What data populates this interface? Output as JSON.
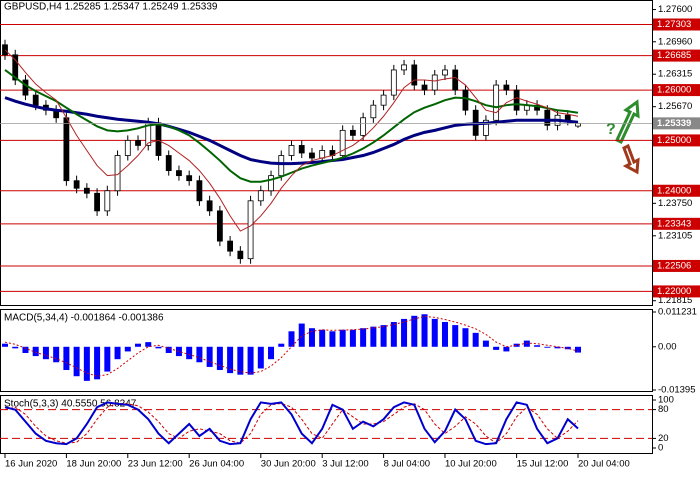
{
  "chart_data": [
    {
      "type": "candlestick",
      "title": "GBPUSD,H4  1.25285 1.25347 1.25249 1.25339",
      "categories": [
        "16 Jun 2020",
        null,
        null,
        null,
        null,
        null,
        "18 Jun 20:00",
        null,
        null,
        null,
        null,
        null,
        "23 Jun 12:00",
        null,
        null,
        null,
        null,
        null,
        "26 Jun 04:00",
        null,
        null,
        null,
        null,
        null,
        null,
        "30 Jun 20:00",
        null,
        null,
        null,
        null,
        null,
        "3 Jul 12:00",
        null,
        null,
        null,
        null,
        null,
        "8 Jul 04:00",
        null,
        null,
        null,
        null,
        null,
        "10 Jul 20:00",
        null,
        null,
        null,
        null,
        null,
        null,
        "15 Jul 12:00",
        null,
        null,
        null,
        null,
        null,
        "20 Jul 04:00"
      ],
      "open": [
        1.269,
        1.267,
        1.262,
        1.259,
        1.257,
        1.256,
        1.2545,
        1.242,
        1.2405,
        1.2395,
        1.236,
        1.24,
        1.247,
        1.25,
        1.249,
        1.2535,
        1.247,
        1.244,
        1.243,
        1.242,
        1.238,
        1.236,
        1.23,
        1.228,
        1.2265,
        1.238,
        1.24,
        1.243,
        1.247,
        1.249,
        1.2475,
        1.2465,
        1.248,
        1.247,
        1.252,
        1.251,
        1.2545,
        1.257,
        1.259,
        1.264,
        1.265,
        1.261,
        1.26,
        1.263,
        1.264,
        1.26,
        1.256,
        1.251,
        1.254,
        1.261,
        1.26,
        1.256,
        1.257,
        1.256,
        1.253,
        1.255,
        1.25285
      ],
      "high": [
        1.27,
        1.268,
        1.263,
        1.26,
        1.258,
        1.257,
        1.2555,
        1.243,
        1.2415,
        1.2405,
        1.241,
        1.248,
        1.251,
        1.251,
        1.2545,
        1.2545,
        1.248,
        1.245,
        1.244,
        1.243,
        1.239,
        1.237,
        1.231,
        1.229,
        1.239,
        1.241,
        1.244,
        1.248,
        1.25,
        1.25,
        1.2485,
        1.249,
        1.249,
        1.253,
        1.253,
        1.2555,
        1.258,
        1.26,
        1.265,
        1.266,
        1.266,
        1.262,
        1.264,
        1.265,
        1.265,
        1.261,
        1.257,
        1.255,
        1.262,
        1.262,
        1.261,
        1.258,
        1.258,
        1.257,
        1.256,
        1.256,
        1.25347
      ],
      "low": [
        1.266,
        1.261,
        1.258,
        1.256,
        1.255,
        1.2535,
        1.241,
        1.2395,
        1.2385,
        1.235,
        1.235,
        1.239,
        1.246,
        1.248,
        1.248,
        1.246,
        1.243,
        1.242,
        1.241,
        1.237,
        1.235,
        1.229,
        1.227,
        1.2255,
        1.2255,
        1.237,
        1.239,
        1.242,
        1.246,
        1.2465,
        1.2455,
        1.2455,
        1.246,
        1.246,
        1.25,
        1.25,
        1.2535,
        1.256,
        1.258,
        1.263,
        1.26,
        1.259,
        1.259,
        1.262,
        1.259,
        1.255,
        1.25,
        1.25,
        1.253,
        1.259,
        1.255,
        1.255,
        1.255,
        1.252,
        1.252,
        1.253,
        1.25249
      ],
      "close": [
        1.267,
        1.262,
        1.259,
        1.257,
        1.256,
        1.2545,
        1.242,
        1.2405,
        1.2395,
        1.236,
        1.24,
        1.247,
        1.25,
        1.249,
        1.2535,
        1.247,
        1.244,
        1.243,
        1.242,
        1.238,
        1.236,
        1.23,
        1.228,
        1.2265,
        1.238,
        1.24,
        1.243,
        1.247,
        1.249,
        1.2475,
        1.2465,
        1.248,
        1.247,
        1.252,
        1.251,
        1.2545,
        1.257,
        1.259,
        1.264,
        1.265,
        1.261,
        1.26,
        1.263,
        1.264,
        1.26,
        1.256,
        1.251,
        1.254,
        1.261,
        1.26,
        1.256,
        1.257,
        1.256,
        1.253,
        1.255,
        1.254,
        1.25339
      ],
      "series": [
        {
          "color": "#000080",
          "values": [
            1.2585,
            1.2578,
            1.2572,
            1.2567,
            1.2563,
            1.256,
            1.2558,
            1.2555,
            1.2552,
            1.2548,
            1.2545,
            1.2542,
            1.254,
            1.2538,
            1.2536,
            1.2533,
            1.2528,
            1.2522,
            1.2516,
            1.2508,
            1.25,
            1.249,
            1.248,
            1.247,
            1.2462,
            1.2458,
            1.2455,
            1.2454,
            1.2454,
            1.2455,
            1.2456,
            1.2458,
            1.246,
            1.2462,
            1.2466,
            1.247,
            1.2476,
            1.2484,
            1.2492,
            1.2502,
            1.251,
            1.2516,
            1.252,
            1.2525,
            1.253,
            1.2532,
            1.2533,
            1.2534,
            1.2536,
            1.2538,
            1.254,
            1.254,
            1.254,
            1.254,
            1.254,
            1.2538,
            1.2536
          ]
        },
        {
          "color": "#006400",
          "values": [
            1.264,
            1.2625,
            1.261,
            1.2598,
            1.2588,
            1.2578,
            1.2565,
            1.2552,
            1.254,
            1.2528,
            1.252,
            1.2518,
            1.252,
            1.2524,
            1.253,
            1.2532,
            1.2528,
            1.252,
            1.251,
            1.2495,
            1.2478,
            1.246,
            1.244,
            1.2425,
            1.2418,
            1.2418,
            1.2422,
            1.2428,
            1.2436,
            1.2444,
            1.245,
            1.2455,
            1.246,
            1.2466,
            1.2474,
            1.2484,
            1.2496,
            1.251,
            1.2526,
            1.2542,
            1.2556,
            1.2565,
            1.2572,
            1.258,
            1.2585,
            1.2584,
            1.2578,
            1.257,
            1.2566,
            1.257,
            1.2572,
            1.257,
            1.2568,
            1.2564,
            1.256,
            1.2558,
            1.2555
          ]
        },
        {
          "color": "#b22222",
          "values": [
            1.268,
            1.266,
            1.2635,
            1.2612,
            1.2595,
            1.258,
            1.2545,
            1.251,
            1.248,
            1.245,
            1.243,
            1.2432,
            1.245,
            1.247,
            1.2495,
            1.25,
            1.249,
            1.2475,
            1.246,
            1.244,
            1.2415,
            1.2385,
            1.235,
            1.232,
            1.233,
            1.235,
            1.2375,
            1.2405,
            1.243,
            1.245,
            1.246,
            1.2465,
            1.247,
            1.248,
            1.249,
            1.2505,
            1.2525,
            1.2548,
            1.2575,
            1.2605,
            1.262,
            1.262,
            1.2618,
            1.2622,
            1.2625,
            1.261,
            1.2585,
            1.256,
            1.2555,
            1.2575,
            1.2585,
            1.2578,
            1.2572,
            1.2565,
            1.2555,
            1.2552,
            1.2548
          ]
        }
      ],
      "levels": [
        1.27303,
        1.26685,
        {
          "value": 1.26,
          "label": "1.26000"
        },
        {
          "value": 1.25,
          "label": "1.25000"
        },
        {
          "value": 1.24,
          "label": "1.24000"
        },
        1.23343,
        1.22506,
        {
          "value": 1.22,
          "label": "1.22000"
        }
      ],
      "level_color": "#cc0000",
      "ylim": [
        1.2175,
        1.2775
      ],
      "yticks": [
        {
          "value": 1.276,
          "label": "1.27600"
        },
        {
          "value": 1.2696,
          "label": "1.26960"
        },
        1.26315,
        {
          "value": 1.2567,
          "label": "1.25670"
        },
        {
          "value": 1.2375,
          "label": "1.23750"
        },
        1.23105,
        1.21815
      ]
    },
    {
      "type": "macd",
      "title": "MACD(5,34,4) -0.001864 -0.001386",
      "color": "#0000ff",
      "values": [
        0.001,
        -0.0005,
        -0.002,
        -0.003,
        -0.004,
        -0.005,
        -0.0075,
        -0.0095,
        -0.011,
        -0.0105,
        -0.008,
        -0.004,
        -0.0015,
        0.001,
        0.0015,
        -0.0005,
        -0.002,
        -0.003,
        -0.004,
        -0.005,
        -0.0065,
        -0.0075,
        -0.0085,
        -0.009,
        -0.009,
        -0.007,
        -0.004,
        0.001,
        0.005,
        0.0075,
        0.006,
        0.0055,
        0.005,
        0.0055,
        0.0055,
        0.006,
        0.0065,
        0.007,
        0.008,
        0.009,
        0.01,
        0.0105,
        0.009,
        0.008,
        0.007,
        0.006,
        0.0045,
        0.002,
        -0.001,
        -0.0015,
        0.001,
        0.002,
        0.0005,
        -0.0003,
        -0.0005,
        -0.0008,
        -0.001864
      ],
      "signal": {
        "color": "#cc0000",
        "values": [
          0.0015,
          0.0008,
          -0.0005,
          -0.0018,
          -0.0028,
          -0.0038,
          -0.0052,
          -0.0068,
          -0.0085,
          -0.0095,
          -0.009,
          -0.007,
          -0.0045,
          -0.002,
          0.0,
          0.0005,
          -0.0005,
          -0.0015,
          -0.0025,
          -0.0035,
          -0.0048,
          -0.006,
          -0.0072,
          -0.008,
          -0.0085,
          -0.008,
          -0.0062,
          -0.0035,
          0.0,
          0.0035,
          0.005,
          0.0055,
          0.0053,
          0.0054,
          0.0055,
          0.0057,
          0.0061,
          0.0065,
          0.0072,
          0.008,
          0.009,
          0.0098,
          0.0095,
          0.0088,
          0.008,
          0.007,
          0.0058,
          0.004,
          0.0015,
          0.0,
          0.0005,
          0.0012,
          0.001,
          0.0005,
          0.0,
          -0.0005,
          -0.001386
        ]
      },
      "ylim": [
        -0.01395,
        0.011231
      ],
      "yticks": [
        0.011231,
        {
          "value": 0,
          "label": "0.00"
        },
        -0.01395
      ]
    },
    {
      "type": "stoch",
      "title": "Stoch(5,3,3) 40.5550 56.8247",
      "color": "#0000cd",
      "values": [
        85,
        80,
        55,
        30,
        15,
        10,
        8,
        20,
        50,
        85,
        95,
        92,
        90,
        80,
        60,
        30,
        10,
        30,
        50,
        25,
        40,
        15,
        8,
        10,
        60,
        95,
        92,
        95,
        70,
        30,
        10,
        40,
        90,
        80,
        40,
        55,
        45,
        60,
        85,
        95,
        90,
        40,
        12,
        35,
        80,
        60,
        15,
        8,
        10,
        60,
        95,
        90,
        40,
        10,
        20,
        60,
        40.555
      ],
      "signal": {
        "color": "#cc0000",
        "values": [
          80,
          85,
          70,
          45,
          25,
          15,
          10,
          12,
          30,
          60,
          85,
          93,
          92,
          88,
          75,
          55,
          30,
          20,
          35,
          40,
          35,
          30,
          15,
          10,
          30,
          70,
          90,
          93,
          85,
          60,
          30,
          20,
          50,
          80,
          65,
          50,
          50,
          55,
          70,
          85,
          92,
          80,
          50,
          30,
          45,
          65,
          50,
          25,
          10,
          30,
          65,
          85,
          70,
          40,
          20,
          35,
          56.8247
        ]
      },
      "levels": [
        20,
        80
      ],
      "level_color": "#cc0000",
      "ylim": [
        0,
        100
      ],
      "yticks": [
        0,
        20,
        80,
        100
      ]
    }
  ]
}
